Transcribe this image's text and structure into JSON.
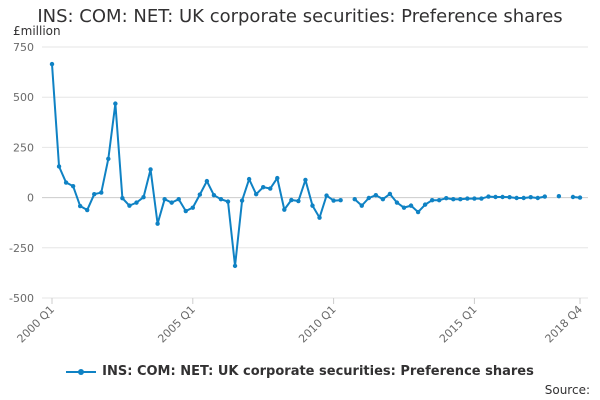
{
  "title": "INS: COM: NET: UK corporate securities: Preference shares",
  "unit": "£million",
  "source_label": "Source:",
  "legend_label": "INS: COM: NET: UK corporate securities: Preference shares",
  "colors": {
    "series": "#0f82c4",
    "grid": "#e6e6e6",
    "axis_text": "#6a6a6a"
  },
  "chart_data": {
    "type": "line",
    "title": "INS: COM: NET: UK corporate securities: Preference shares",
    "ylabel": "£million",
    "xlabel": "",
    "ylim": [
      -500,
      750
    ],
    "yticks": [
      750,
      500,
      250,
      0,
      -250,
      -500
    ],
    "xticks": [
      {
        "label": "2000 Q1",
        "index": 0
      },
      {
        "label": "2005 Q1",
        "index": 20
      },
      {
        "label": "2010 Q1",
        "index": 40
      },
      {
        "label": "2015 Q1",
        "index": 60
      },
      {
        "label": "2018 Q4",
        "index": 75
      }
    ],
    "grid": true,
    "legend": "bottom",
    "series": [
      {
        "name": "INS: COM: NET: UK corporate securities: Preference shares",
        "x": [
          "2000 Q1",
          "2000 Q2",
          "2000 Q3",
          "2000 Q4",
          "2001 Q1",
          "2001 Q2",
          "2001 Q3",
          "2001 Q4",
          "2002 Q1",
          "2002 Q2",
          "2002 Q3",
          "2002 Q4",
          "2003 Q1",
          "2003 Q2",
          "2003 Q3",
          "2003 Q4",
          "2004 Q1",
          "2004 Q2",
          "2004 Q3",
          "2004 Q4",
          "2005 Q1",
          "2005 Q2",
          "2005 Q3",
          "2005 Q4",
          "2006 Q1",
          "2006 Q2",
          "2006 Q3",
          "2006 Q4",
          "2007 Q1",
          "2007 Q2",
          "2007 Q3",
          "2007 Q4",
          "2008 Q1",
          "2008 Q2",
          "2008 Q3",
          "2008 Q4",
          "2009 Q1",
          "2009 Q2",
          "2009 Q3",
          "2009 Q4",
          "2010 Q1",
          "2010 Q2",
          "2010 Q3",
          "2010 Q4",
          "2011 Q1",
          "2011 Q2",
          "2011 Q3",
          "2011 Q4",
          "2012 Q1",
          "2012 Q2",
          "2012 Q3",
          "2012 Q4",
          "2013 Q1",
          "2013 Q2",
          "2013 Q3",
          "2013 Q4",
          "2014 Q1",
          "2014 Q2",
          "2014 Q3",
          "2014 Q4",
          "2015 Q1",
          "2015 Q2",
          "2015 Q3",
          "2015 Q4",
          "2016 Q1",
          "2016 Q2",
          "2016 Q3",
          "2016 Q4",
          "2017 Q1",
          "2017 Q2",
          "2017 Q3",
          "2017 Q4",
          "2018 Q1",
          "2018 Q2",
          "2018 Q3",
          "2018 Q4"
        ],
        "values": [
          665,
          155,
          75,
          57,
          -42,
          -62,
          17,
          25,
          193,
          468,
          -3,
          -40,
          -25,
          2,
          140,
          -130,
          -8,
          -25,
          -8,
          -67,
          -50,
          15,
          82,
          12,
          -8,
          -20,
          -340,
          -15,
          92,
          17,
          52,
          45,
          97,
          -60,
          -12,
          -17,
          88,
          -40,
          -100,
          10,
          -15,
          -13,
          null,
          -8,
          -40,
          -2,
          12,
          -8,
          18,
          -25,
          -50,
          -40,
          -72,
          -35,
          -13,
          -13,
          -3,
          -8,
          -8,
          -5,
          -5,
          -5,
          5,
          3,
          3,
          2,
          -2,
          -2,
          2,
          -2,
          5,
          null,
          7,
          null,
          3,
          0
        ]
      }
    ]
  }
}
